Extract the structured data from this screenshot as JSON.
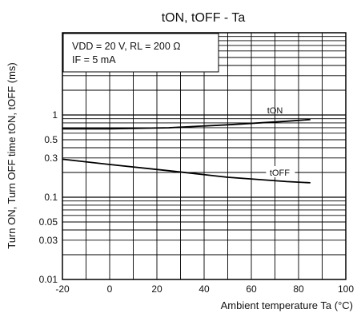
{
  "chart_data": {
    "type": "line",
    "title": "tON, tOFF - Ta",
    "xlabel": "Ambient temperature Ta (°C)",
    "ylabel": "Turn ON, Turn OFF time tON, tOFF (ms)",
    "x_scale": "linear",
    "y_scale": "log",
    "xlim": [
      -20,
      100
    ],
    "ylim": [
      0.01,
      10
    ],
    "x_ticks": [
      "-20",
      "0",
      "20",
      "40",
      "60",
      "80",
      "100"
    ],
    "y_ticks": [
      "0.01",
      "0.03",
      "0.05",
      "0.1",
      "0.3",
      "0.5",
      "1"
    ],
    "grid": true,
    "annotation": {
      "line1": "VDD = 20 V, RL = 200 Ω",
      "line2": "IF = 5 mA"
    },
    "series": [
      {
        "name": "tON",
        "x": [
          -20,
          0,
          25,
          50,
          75,
          85
        ],
        "y": [
          0.68,
          0.68,
          0.7,
          0.76,
          0.84,
          0.88
        ]
      },
      {
        "name": "tOFF",
        "x": [
          -20,
          0,
          25,
          50,
          75,
          85
        ],
        "y": [
          0.29,
          0.25,
          0.21,
          0.175,
          0.155,
          0.15
        ]
      }
    ]
  }
}
